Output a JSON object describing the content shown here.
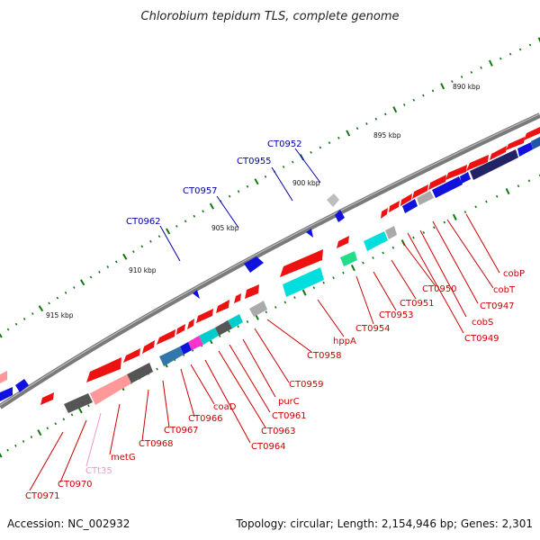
{
  "title": "Chlorobium tepidum TLS, complete genome",
  "accession": "Accession: NC_002932",
  "topology": "Topology: circular; Length: 2,154,946 bp; Genes: 2,301",
  "colors": {
    "backbone": "#7a7a7a",
    "forward_gene": "#ee1111",
    "reverse_gene": "#1111dd",
    "rna": "#22dd88",
    "pseudo": "#ff9999",
    "label_forward": "#0000aa",
    "label_reverse": "#cc0000",
    "label_rna": "#ee99cc",
    "tick_major": "#117711",
    "tick_minor": "#117711"
  },
  "scale_marks": [
    "890 kbp",
    "895 kbp",
    "900 kbp",
    "905 kbp",
    "910 kbp",
    "915 kbp"
  ],
  "labels_forward": [
    "CT0952",
    "CT0955",
    "CT0957",
    "CT0962"
  ],
  "labels_reverse": [
    "cobP",
    "cobT",
    "CT0947",
    "cobS",
    "CT0949",
    "CT0950",
    "CT0951",
    "CT0953",
    "CT0954",
    "hppA",
    "CT0958",
    "CT0959",
    "purC",
    "CT0961",
    "CT0963",
    "CT0964",
    "coaD",
    "CT0966",
    "CT0967",
    "CT0968",
    "metG",
    "CTt35",
    "CT0970",
    "CT0971"
  ]
}
